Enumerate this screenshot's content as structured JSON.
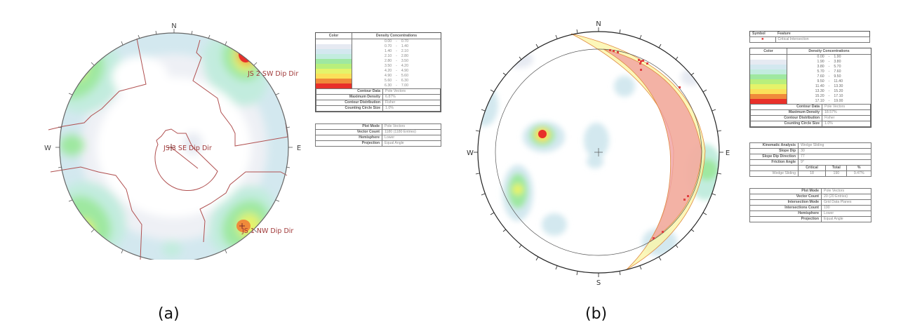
{
  "chart_data": [
    {
      "type": "stereonet",
      "title": "(a)",
      "compass": {
        "north": "N",
        "east": "E",
        "south": "S",
        "west": "W"
      },
      "set_labels": [
        {
          "label": "JS 2 SW Dip Dir",
          "position": "upper-right pole cluster"
        },
        {
          "label": "JS 3 SE Dip Dir",
          "position": "center"
        },
        {
          "label": "JS 1 NW Dip Dir",
          "position": "lower-right pole cluster"
        }
      ],
      "legend": {
        "color_header": "Color",
        "density_header": "Density Concentrations",
        "bins": [
          {
            "from": "0.00",
            "to": "0.70",
            "color": "#ffffff"
          },
          {
            "from": "0.70",
            "to": "1.40",
            "color": "#e6eaf2"
          },
          {
            "from": "1.40",
            "to": "2.10",
            "color": "#d3e8ef"
          },
          {
            "from": "2.10",
            "to": "2.80",
            "color": "#c2ecde"
          },
          {
            "from": "2.80",
            "to": "3.50",
            "color": "#9fe8a0"
          },
          {
            "from": "3.50",
            "to": "4.20",
            "color": "#b8ef7c"
          },
          {
            "from": "4.20",
            "to": "4.90",
            "color": "#e5f36a"
          },
          {
            "from": "4.90",
            "to": "5.60",
            "color": "#fbe05a"
          },
          {
            "from": "5.60",
            "to": "6.30",
            "color": "#f08a3a"
          },
          {
            "from": "6.30",
            "to": "7.00",
            "color": "#e8302a"
          }
        ],
        "properties": [
          {
            "key": "Contour Data",
            "value": "Pole Vectors"
          },
          {
            "key": "Maximum Density",
            "value": "6.87%"
          },
          {
            "key": "Contour Distribution",
            "value": "Fisher"
          },
          {
            "key": "Counting Circle Size",
            "value": "1.0%"
          }
        ],
        "plot_info": [
          {
            "key": "Plot Mode",
            "value": "Pole Vectors"
          },
          {
            "key": "Vector Count",
            "value": "1180 (1180 Entries)"
          },
          {
            "key": "Hemisphere",
            "value": "Lower"
          },
          {
            "key": "Projection",
            "value": "Equal Angle"
          }
        ]
      }
    },
    {
      "type": "stereonet",
      "title": "(b)",
      "compass": {
        "north": "N",
        "east": "E",
        "south": "S",
        "west": "W"
      },
      "symbol_table": {
        "symbol_header": "Symbol",
        "feature_header": "Feature",
        "rows": [
          {
            "symbol": "red-square",
            "feature": "Critical Intersection"
          }
        ]
      },
      "legend": {
        "color_header": "Color",
        "density_header": "Density Concentrations",
        "bins": [
          {
            "from": "0.00",
            "to": "1.90",
            "color": "#ffffff"
          },
          {
            "from": "1.90",
            "to": "3.80",
            "color": "#e6eaf2"
          },
          {
            "from": "3.80",
            "to": "5.70",
            "color": "#d3e8ef"
          },
          {
            "from": "5.70",
            "to": "7.60",
            "color": "#c2ecde"
          },
          {
            "from": "7.60",
            "to": "9.50",
            "color": "#9fe8a0"
          },
          {
            "from": "9.50",
            "to": "11.40",
            "color": "#b8ef7c"
          },
          {
            "from": "11.40",
            "to": "13.30",
            "color": "#e5f36a"
          },
          {
            "from": "13.30",
            "to": "15.20",
            "color": "#fbe05a"
          },
          {
            "from": "15.20",
            "to": "17.10",
            "color": "#f08a3a"
          },
          {
            "from": "17.10",
            "to": "19.00",
            "color": "#e8302a"
          }
        ],
        "properties": [
          {
            "key": "Contour Data",
            "value": "Pole Vectors"
          },
          {
            "key": "Maximum Density",
            "value": "18.57%"
          },
          {
            "key": "Contour Distribution",
            "value": "Fisher"
          },
          {
            "key": "Counting Circle Size",
            "value": "1.0%"
          }
        ]
      },
      "kinematic": {
        "rows": [
          {
            "key": "Kinematic Analysis",
            "value": "Wedge Sliding"
          },
          {
            "key": "Slope Dip",
            "value": "30"
          },
          {
            "key": "Slope Dip Direction",
            "value": "77"
          },
          {
            "key": "Friction Angle",
            "value": "9°"
          }
        ],
        "result_headers": [
          "Critical",
          "Total",
          "%"
        ],
        "result": {
          "label": "Wedge Sliding",
          "critical": "18",
          "total": "190",
          "percent": "9.47%"
        }
      },
      "plot_info": [
        {
          "key": "Plot Mode",
          "value": "Pole Vectors"
        },
        {
          "key": "Vector Count",
          "value": "20 (20 Entries)"
        },
        {
          "key": "Intersection Mode",
          "value": "Grid Data Planes"
        },
        {
          "key": "Intersections Count",
          "value": "190"
        },
        {
          "key": "Hemisphere",
          "value": "Lower"
        },
        {
          "key": "Projection",
          "value": "Equal Angle"
        }
      ]
    }
  ],
  "captions": {
    "a": "(a)",
    "b": "(b)"
  }
}
